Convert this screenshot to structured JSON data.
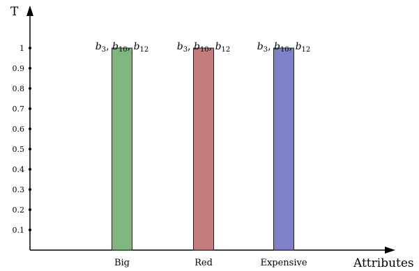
{
  "chart_data": {
    "type": "bar",
    "categories": [
      "Big",
      "Red",
      "Expensive"
    ],
    "values": [
      1,
      1,
      1
    ],
    "colors": [
      "#80b580",
      "#c47c7c",
      "#8080c8"
    ],
    "ylabel": "T",
    "xlabel": "Attributes",
    "ylim": [
      0,
      1.1
    ],
    "yticks": [
      0.1,
      0.2,
      0.3,
      0.4,
      0.5,
      0.6,
      0.7,
      0.8,
      0.9,
      1
    ],
    "ytick_labels": [
      "0.1",
      "0.2",
      "0.3",
      "0.4",
      "0.5",
      "0.6",
      "0.7",
      "0.8",
      "0.9",
      "1"
    ],
    "bar_labels": [
      {
        "parts": [
          {
            "base": "b",
            "sub": "3"
          },
          {
            "base": "b",
            "sub": "10"
          },
          {
            "base": "b",
            "sub": "12"
          }
        ],
        "separator": ", "
      },
      {
        "parts": [
          {
            "base": "b",
            "sub": "3"
          },
          {
            "base": "b",
            "sub": "10"
          },
          {
            "base": "b",
            "sub": "12"
          }
        ],
        "separator": ", "
      },
      {
        "parts": [
          {
            "base": "b",
            "sub": "3"
          },
          {
            "base": "b",
            "sub": "10"
          },
          {
            "base": "b",
            "sub": "12"
          }
        ],
        "separator": ", "
      }
    ],
    "grid": false,
    "legend": "none"
  }
}
